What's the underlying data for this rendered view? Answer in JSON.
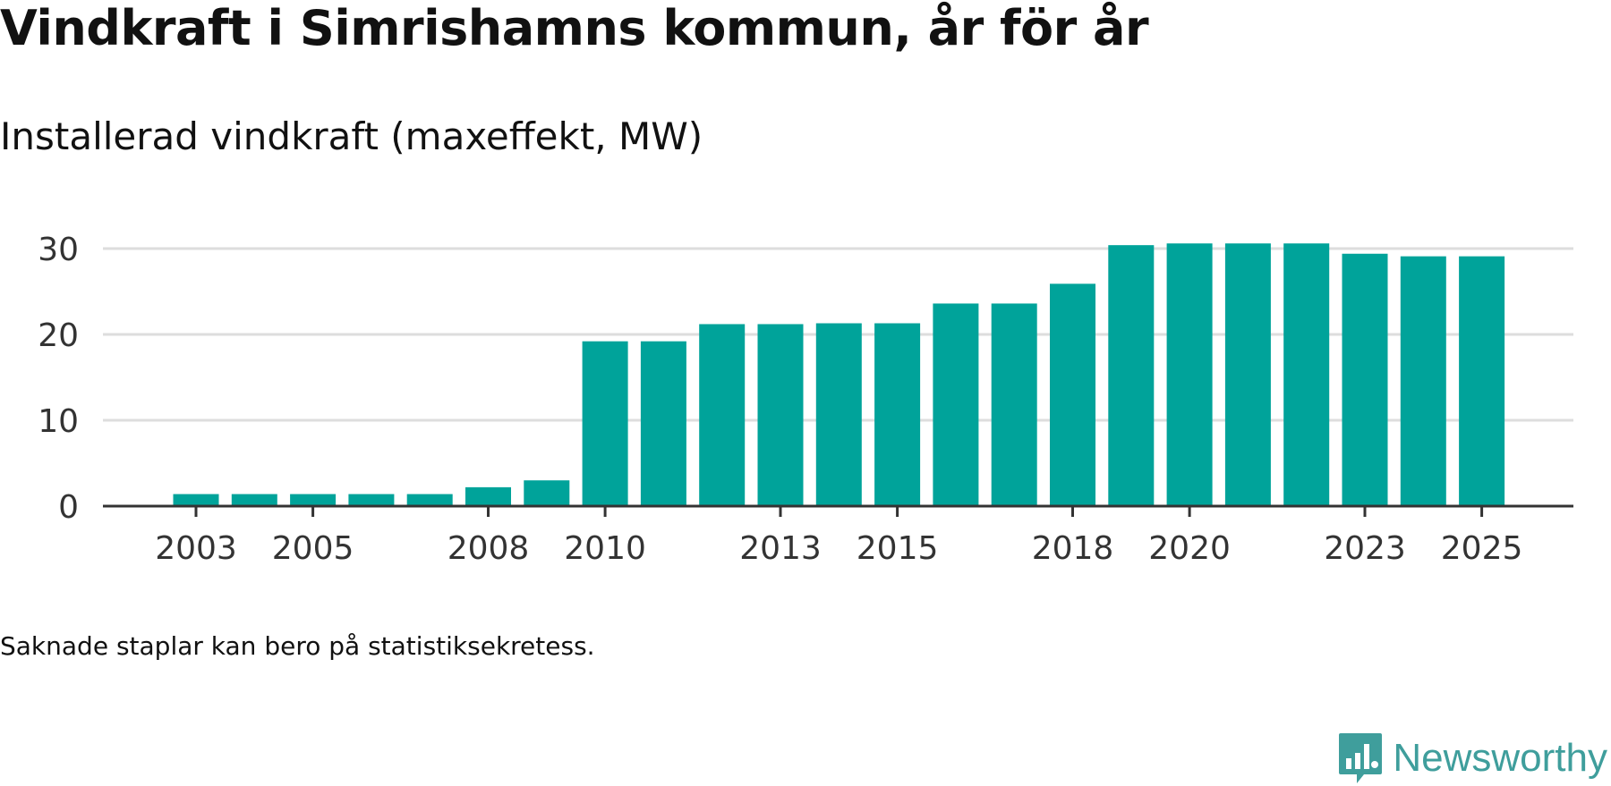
{
  "header": {
    "title": "Vindkraft i Simrishamns kommun, år för år",
    "subtitle": "Installerad vindkraft (maxeffekt, MW)"
  },
  "footer": {
    "note": "Saknade staplar kan bero på statistiksekretess.",
    "brand": "Newsworthy"
  },
  "colors": {
    "bar": "#00a39a",
    "grid": "#dddddd",
    "axis": "#333333",
    "brand": "#3f9e9c"
  },
  "chart_data": {
    "type": "bar",
    "title": "Vindkraft i Simrishamns kommun, år för år",
    "ylabel": "Installerad vindkraft (maxeffekt, MW)",
    "xlabel": "",
    "categories": [
      "2003",
      "2004",
      "2005",
      "2006",
      "2007",
      "2008",
      "2009",
      "2010",
      "2011",
      "2012",
      "2013",
      "2014",
      "2015",
      "2016",
      "2017",
      "2018",
      "2019",
      "2020",
      "2021",
      "2022",
      "2023",
      "2024",
      "2025"
    ],
    "values": [
      1.4,
      1.4,
      1.4,
      1.4,
      1.4,
      2.2,
      3.0,
      19.2,
      19.2,
      21.2,
      21.2,
      21.3,
      21.3,
      23.6,
      23.6,
      25.9,
      30.4,
      30.6,
      30.6,
      30.6,
      29.4,
      29.1,
      29.1
    ],
    "xticks": [
      "2003",
      "2005",
      "2008",
      "2010",
      "2013",
      "2015",
      "2018",
      "2020",
      "2023",
      "2025"
    ],
    "yticks": [
      0,
      10,
      20,
      30
    ],
    "ylim": [
      0,
      35
    ],
    "grid": true
  }
}
